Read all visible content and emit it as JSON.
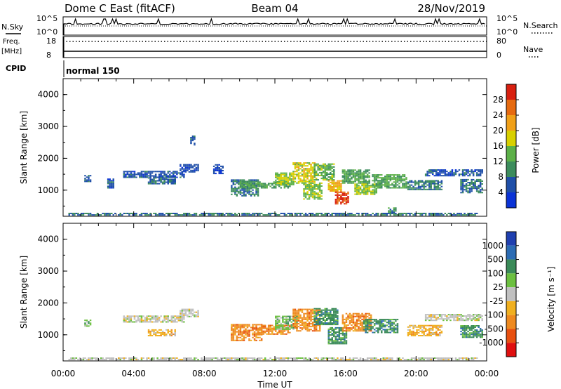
{
  "header": {
    "station": "Dome C East (fitACF)",
    "beam": "Beam 04",
    "date": "28/Nov/2019"
  },
  "status_panel": {
    "nsky_label": "N.Sky",
    "nsearch_label": "N.Search",
    "noise_ticks": [
      "10^5",
      "10^0"
    ],
    "freq_label_1": "Freq.",
    "freq_label_2": "[MHz]",
    "freq_ticks": [
      "18",
      "8"
    ],
    "nave_label": "Nave",
    "nave_ticks": [
      "80",
      "0"
    ],
    "cpid_label": "CPID",
    "cpid_value": "normal 150"
  },
  "colors": {
    "power": [
      "#0b33d6",
      "#1f4fa8",
      "#3c8c5c",
      "#5cb048",
      "#d8d000",
      "#f0a018",
      "#e66a10",
      "#d82010"
    ],
    "velocity": [
      "#2040b0",
      "#2c6cb4",
      "#3a8a58",
      "#6cc040",
      "#c0c0c0",
      "#f0b020",
      "#ee8a20",
      "#e85010",
      "#e01010"
    ]
  },
  "chart_data": [
    {
      "type": "heatmap",
      "name": "power",
      "ylabel": "Slant Range [km]",
      "xlabel": "",
      "ylim": [
        180,
        4500
      ],
      "xlim": [
        "00:00",
        "24:00"
      ],
      "x_ticks": [
        "00:00",
        "04:00",
        "08:00",
        "12:00",
        "16:00",
        "20:00",
        "00:00"
      ],
      "y_ticks": [
        "1000",
        "2000",
        "3000",
        "4000"
      ],
      "colorbar_label": "Power [dB]",
      "colorbar_ticks": [
        "4",
        "8",
        "12",
        "16",
        "20",
        "24",
        "28"
      ],
      "colorbar_range": [
        0,
        32
      ],
      "regions": [
        {
          "t0": 1.2,
          "t1": 1.6,
          "r0": 1250,
          "r1": 1450,
          "v": 6
        },
        {
          "t0": 2.5,
          "t1": 2.9,
          "r0": 1050,
          "r1": 1350,
          "v": 6
        },
        {
          "t0": 3.4,
          "t1": 6.8,
          "r0": 1380,
          "r1": 1580,
          "v": 6
        },
        {
          "t0": 4.8,
          "t1": 6.3,
          "r0": 1180,
          "r1": 1380,
          "v": 7
        },
        {
          "t0": 6.6,
          "t1": 7.6,
          "r0": 1550,
          "r1": 1800,
          "v": 5
        },
        {
          "t0": 7.2,
          "t1": 7.4,
          "r0": 2400,
          "r1": 2700,
          "v": 6
        },
        {
          "t0": 8.5,
          "t1": 9.0,
          "r0": 1500,
          "r1": 1800,
          "v": 5
        },
        {
          "t0": 9.5,
          "t1": 11.0,
          "r0": 800,
          "r1": 1300,
          "v": 9
        },
        {
          "t0": 10.0,
          "t1": 12.8,
          "r0": 1050,
          "r1": 1250,
          "v": 12
        },
        {
          "t0": 12.0,
          "t1": 13.0,
          "r0": 1150,
          "r1": 1550,
          "v": 16
        },
        {
          "t0": 13.0,
          "t1": 14.2,
          "r0": 1200,
          "r1": 1850,
          "v": 18
        },
        {
          "t0": 13.6,
          "t1": 14.6,
          "r0": 700,
          "r1": 1200,
          "v": 15
        },
        {
          "t0": 14.2,
          "t1": 15.3,
          "r0": 1300,
          "r1": 1800,
          "v": 14
        },
        {
          "t0": 15.0,
          "t1": 15.7,
          "r0": 950,
          "r1": 1300,
          "v": 21
        },
        {
          "t0": 15.4,
          "t1": 16.1,
          "r0": 550,
          "r1": 950,
          "v": 28
        },
        {
          "t0": 15.8,
          "t1": 17.4,
          "r0": 1200,
          "r1": 1650,
          "v": 12
        },
        {
          "t0": 16.5,
          "t1": 17.8,
          "r0": 850,
          "r1": 1200,
          "v": 16
        },
        {
          "t0": 17.5,
          "t1": 19.5,
          "r0": 1050,
          "r1": 1500,
          "v": 13
        },
        {
          "t0": 18.4,
          "t1": 18.9,
          "r0": 280,
          "r1": 450,
          "v": 10
        },
        {
          "t0": 19.5,
          "t1": 21.5,
          "r0": 1000,
          "r1": 1300,
          "v": 9
        },
        {
          "t0": 20.5,
          "t1": 23.8,
          "r0": 1430,
          "r1": 1650,
          "v": 6
        },
        {
          "t0": 22.5,
          "t1": 23.8,
          "r0": 900,
          "r1": 1350,
          "v": 8
        },
        {
          "t0": 0.3,
          "t1": 23.5,
          "r0": 200,
          "r1": 280,
          "v": 8
        }
      ]
    },
    {
      "type": "heatmap",
      "name": "velocity",
      "ylabel": "Slant Range [km]",
      "xlabel": "Time UT",
      "ylim": [
        180,
        4500
      ],
      "xlim": [
        "00:00",
        "24:00"
      ],
      "x_ticks": [
        "00:00",
        "04:00",
        "08:00",
        "12:00",
        "16:00",
        "20:00",
        "00:00"
      ],
      "y_ticks": [
        "1000",
        "2000",
        "3000",
        "4000"
      ],
      "colorbar_label": "Velocity [m s⁻¹]",
      "colorbar_ticks": [
        "1000",
        "500",
        "100",
        "25",
        "-25",
        "-100",
        "-500",
        "-1000"
      ],
      "regions": [
        {
          "t0": 1.2,
          "t1": 1.6,
          "r0": 1250,
          "r1": 1450,
          "v": 3
        },
        {
          "t0": 3.4,
          "t1": 6.8,
          "r0": 1380,
          "r1": 1580,
          "v": 4
        },
        {
          "t0": 4.8,
          "t1": 6.3,
          "r0": 950,
          "r1": 1150,
          "v": 5
        },
        {
          "t0": 6.6,
          "t1": 7.6,
          "r0": 1550,
          "r1": 1800,
          "v": 4
        },
        {
          "t0": 9.5,
          "t1": 11.2,
          "r0": 800,
          "r1": 1300,
          "v": 6
        },
        {
          "t0": 11.0,
          "t1": 12.8,
          "r0": 1000,
          "r1": 1300,
          "v": 6
        },
        {
          "t0": 12.0,
          "t1": 13.2,
          "r0": 1150,
          "r1": 1600,
          "v": 3
        },
        {
          "t0": 13.0,
          "t1": 14.5,
          "r0": 1100,
          "r1": 1800,
          "v": 6
        },
        {
          "t0": 14.2,
          "t1": 15.5,
          "r0": 1300,
          "r1": 1800,
          "v": 2
        },
        {
          "t0": 15.0,
          "t1": 16.0,
          "r0": 700,
          "r1": 1200,
          "v": 2
        },
        {
          "t0": 15.8,
          "t1": 17.5,
          "r0": 1100,
          "r1": 1650,
          "v": 6
        },
        {
          "t0": 17.0,
          "t1": 19.0,
          "r0": 1050,
          "r1": 1500,
          "v": 2
        },
        {
          "t0": 19.5,
          "t1": 21.5,
          "r0": 950,
          "r1": 1300,
          "v": 5
        },
        {
          "t0": 20.5,
          "t1": 23.8,
          "r0": 1430,
          "r1": 1650,
          "v": 4
        },
        {
          "t0": 22.5,
          "t1": 23.8,
          "r0": 900,
          "r1": 1300,
          "v": 2
        },
        {
          "t0": 0.3,
          "t1": 23.5,
          "r0": 200,
          "r1": 280,
          "v": 4
        }
      ]
    }
  ]
}
